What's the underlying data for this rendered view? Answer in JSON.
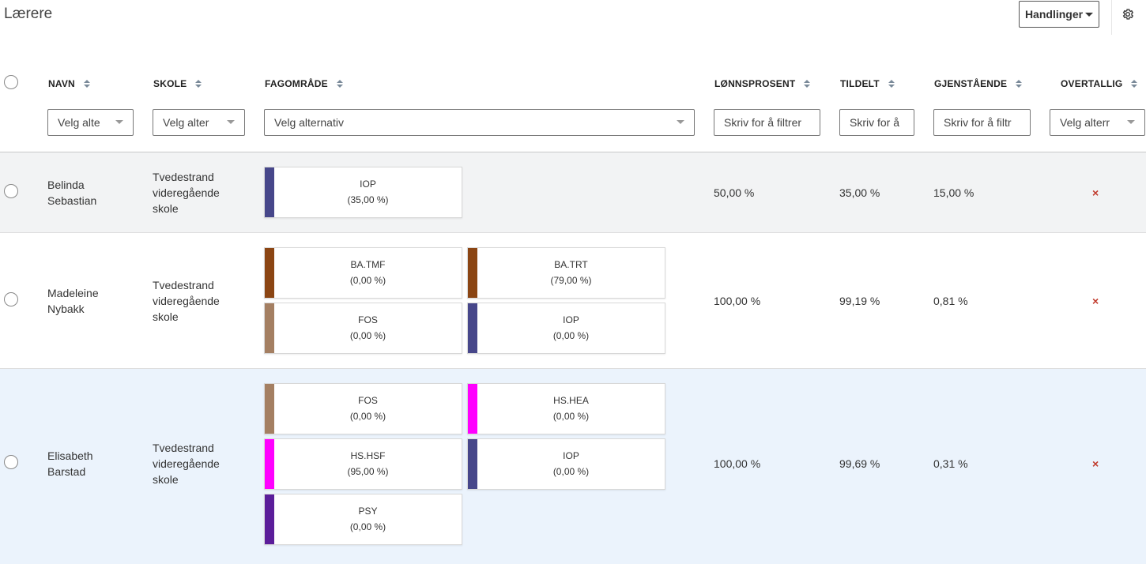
{
  "page_title": "Lærere",
  "actions_button": {
    "label": "Handlinger",
    "icon": "caret-down"
  },
  "settings_icon": "gear-icon",
  "columns": [
    {
      "label": "NAVN",
      "filter_placeholder": "Velg alte"
    },
    {
      "label": "SKOLE",
      "filter_placeholder": "Velg alter"
    },
    {
      "label": "FAGOMRÅDE",
      "filter_placeholder": "Velg alternativ"
    },
    {
      "label": "LØNNSPROSENT",
      "filter_placeholder": "Skriv for å filtrer"
    },
    {
      "label": "TILDELT",
      "filter_placeholder": "Skriv for å"
    },
    {
      "label": "GJENSTÅENDE",
      "filter_placeholder": "Skriv for å filtr"
    },
    {
      "label": "OVERTALLIG",
      "filter_placeholder": "Velg alterr"
    }
  ],
  "colors": {
    "IOP": "#47478a",
    "BA.TMF": "#8b4513",
    "BA.TRT": "#8b4513",
    "FOS": "#a47f62",
    "HS.HEA": "#ff00ff",
    "HS.HSF": "#ff00ff",
    "PSY": "#5b1d9a",
    "overtallig_icon": "#c0392b"
  },
  "rows": [
    {
      "name_line1": "Belinda",
      "name_line2": "Sebastian",
      "school_line1": "Tvedestrand",
      "school_line2": "videregående",
      "school_line3": "skole",
      "subjects": [
        {
          "code": "IOP",
          "pct": "(35,00 %)"
        }
      ],
      "lonnsprosent": "50,00 %",
      "tildelt": "35,00 %",
      "gjenstaende": "15,00 %",
      "overtallig": "×"
    },
    {
      "name_line1": "Madeleine",
      "name_line2": "Nybakk",
      "school_line1": "Tvedestrand",
      "school_line2": "videregående",
      "school_line3": "skole",
      "subjects": [
        {
          "code": "BA.TMF",
          "pct": "(0,00 %)"
        },
        {
          "code": "BA.TRT",
          "pct": "(79,00 %)"
        },
        {
          "code": "FOS",
          "pct": "(0,00 %)"
        },
        {
          "code": "IOP",
          "pct": "(0,00 %)"
        }
      ],
      "lonnsprosent": "100,00 %",
      "tildelt": "99,19 %",
      "gjenstaende": "0,81 %",
      "overtallig": "×"
    },
    {
      "name_line1": "Elisabeth",
      "name_line2": "Barstad",
      "school_line1": "Tvedestrand",
      "school_line2": "videregående",
      "school_line3": "skole",
      "subjects": [
        {
          "code": "FOS",
          "pct": "(0,00 %)"
        },
        {
          "code": "HS.HEA",
          "pct": "(0,00 %)"
        },
        {
          "code": "HS.HSF",
          "pct": "(95,00 %)"
        },
        {
          "code": "IOP",
          "pct": "(0,00 %)"
        },
        {
          "code": "PSY",
          "pct": "(0,00 %)"
        }
      ],
      "lonnsprosent": "100,00 %",
      "tildelt": "99,69 %",
      "gjenstaende": "0,31 %",
      "overtallig": "×"
    }
  ]
}
